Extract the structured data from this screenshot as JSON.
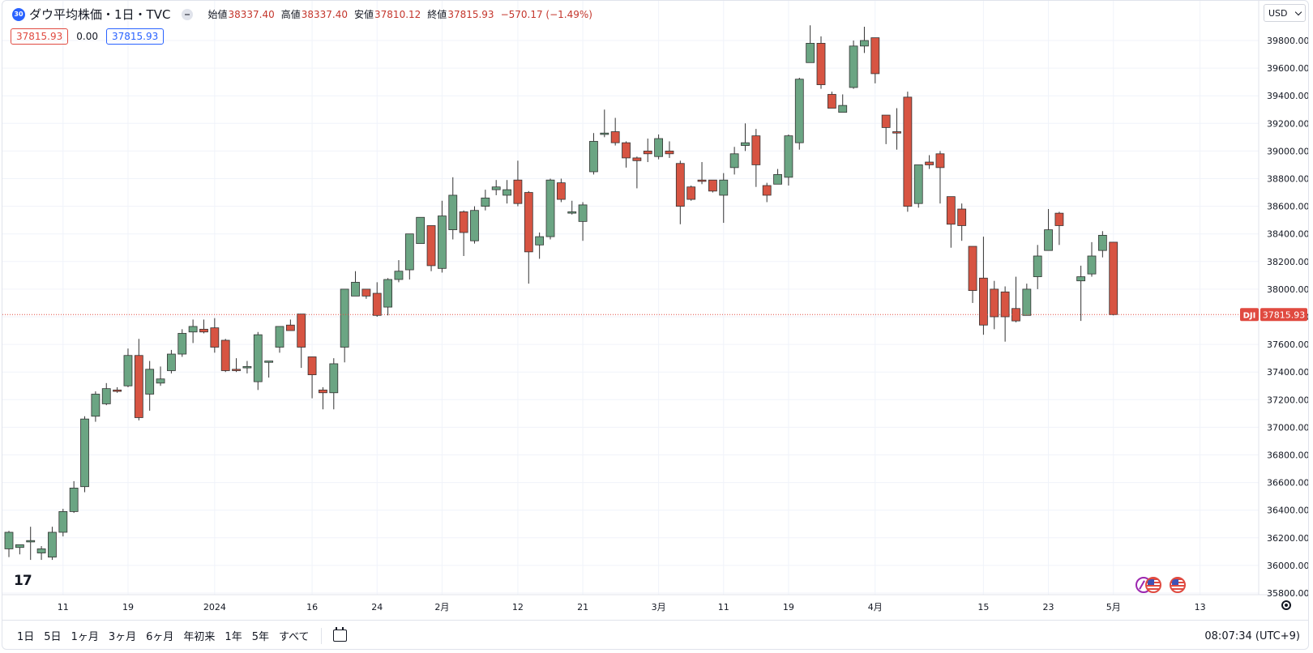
{
  "header": {
    "badge": "30",
    "title": "ダウ平均株価・1日・TVC",
    "ohlc": [
      {
        "label": "始値",
        "value": "38337.40"
      },
      {
        "label": "高値",
        "value": "38337.40"
      },
      {
        "label": "安値",
        "value": "37810.12"
      },
      {
        "label": "終値",
        "value": "37815.93"
      }
    ],
    "change": "−570.17 (−1.49%)"
  },
  "values_row": {
    "sell": "37815.93",
    "spread": "0.00",
    "buy": "37815.93"
  },
  "currency": "USD",
  "toolbar": {
    "ranges": [
      "1日",
      "5日",
      "1ヶ月",
      "3ヶ月",
      "6ヶ月",
      "年初来",
      "1年",
      "5年",
      "すべて"
    ],
    "clock": "08:07:34 (UTC+9)"
  },
  "colors": {
    "up": "#6ba583",
    "down": "#d75442",
    "last_line": "#e04a40",
    "grid": "#f0f3fa"
  },
  "icons": [
    "tradingview-logo-icon",
    "settings-icon",
    "calendar-range-icon",
    "usd-chevron-icon",
    "economic-event-icon",
    "us-flag-icon"
  ],
  "chart_data": {
    "type": "candlestick",
    "symbol": "DJI",
    "last_price": 37815.93,
    "last_label": "37815.93",
    "y_range": [
      35800,
      40000
    ],
    "y_ticks": [
      35800,
      36000,
      36200,
      36400,
      36600,
      36800,
      37000,
      37200,
      37400,
      37600,
      37800,
      38000,
      38200,
      38400,
      38600,
      38800,
      39000,
      39200,
      39400,
      39600,
      39800
    ],
    "y_tick_labels": [
      "35800.00",
      "36000.00",
      "36200.00",
      "36400.00",
      "36600.00",
      "36800.00",
      "37000.00",
      "37200.00",
      "37400.00",
      "37600.00",
      "37800.00",
      "38000.00",
      "38200.00",
      "38400.00",
      "38600.00",
      "38800.00",
      "39000.00",
      "39200.00",
      "39400.00",
      "39600.00",
      "39800.00"
    ],
    "x_range": [
      0,
      111
    ],
    "x_ticks": [
      {
        "i": 5,
        "label": "11"
      },
      {
        "i": 11,
        "label": "19"
      },
      {
        "i": 19,
        "label": "2024"
      },
      {
        "i": 28,
        "label": "16"
      },
      {
        "i": 34,
        "label": "24"
      },
      {
        "i": 40,
        "label": "2月"
      },
      {
        "i": 47,
        "label": "12"
      },
      {
        "i": 53,
        "label": "21"
      },
      {
        "i": 60,
        "label": "3月"
      },
      {
        "i": 66,
        "label": "11"
      },
      {
        "i": 72,
        "label": "19"
      },
      {
        "i": 80,
        "label": "4月"
      },
      {
        "i": 90,
        "label": "15"
      },
      {
        "i": 96,
        "label": "23"
      },
      {
        "i": 102,
        "label": "5月"
      },
      {
        "i": 110,
        "label": "13"
      }
    ],
    "candles": [
      [
        36120,
        36240,
        36060,
        36250
      ],
      [
        36130,
        36150,
        36080,
        36140
      ],
      [
        36170,
        36180,
        36040,
        36280
      ],
      [
        36090,
        36120,
        36040,
        36140
      ],
      [
        36060,
        36240,
        36040,
        36280
      ],
      [
        36240,
        36390,
        36210,
        36410
      ],
      [
        36390,
        36560,
        36380,
        36610
      ],
      [
        36570,
        37060,
        36530,
        37080
      ],
      [
        37080,
        37240,
        37040,
        37260
      ],
      [
        37170,
        37280,
        37160,
        37320
      ],
      [
        37270,
        37260,
        37250,
        37290
      ],
      [
        37300,
        37520,
        37290,
        37570
      ],
      [
        37520,
        37070,
        37050,
        37640
      ],
      [
        37240,
        37420,
        37120,
        37480
      ],
      [
        37320,
        37350,
        37300,
        37440
      ],
      [
        37410,
        37530,
        37390,
        37560
      ],
      [
        37530,
        37680,
        37510,
        37710
      ],
      [
        37690,
        37730,
        37610,
        37780
      ],
      [
        37710,
        37690,
        37680,
        37780
      ],
      [
        37720,
        37580,
        37540,
        37790
      ],
      [
        37630,
        37410,
        37400,
        37640
      ],
      [
        37420,
        37410,
        37400,
        37500
      ],
      [
        37430,
        37440,
        37390,
        37480
      ],
      [
        37330,
        37670,
        37270,
        37690
      ],
      [
        37470,
        37480,
        37360,
        37480
      ],
      [
        37580,
        37730,
        37540,
        37730
      ],
      [
        37740,
        37700,
        37700,
        37780
      ],
      [
        37820,
        37580,
        37430,
        37820
      ],
      [
        37510,
        37380,
        37210,
        37510
      ],
      [
        37270,
        37250,
        37130,
        37290
      ],
      [
        37250,
        37460,
        37130,
        37500
      ],
      [
        37580,
        38000,
        37470,
        38000
      ],
      [
        37950,
        38050,
        37950,
        38130
      ],
      [
        38000,
        37950,
        37930,
        38000
      ],
      [
        37970,
        37810,
        37800,
        38050
      ],
      [
        37870,
        38070,
        37810,
        38080
      ],
      [
        38070,
        38130,
        38050,
        38210
      ],
      [
        38140,
        38400,
        38070,
        38400
      ],
      [
        38330,
        38520,
        38330,
        38520
      ],
      [
        38460,
        38170,
        38130,
        38460
      ],
      [
        38150,
        38530,
        38120,
        38640
      ],
      [
        38430,
        38680,
        38360,
        38810
      ],
      [
        38560,
        38410,
        38240,
        38570
      ],
      [
        38350,
        38570,
        38330,
        38600
      ],
      [
        38600,
        38660,
        38570,
        38720
      ],
      [
        38720,
        38740,
        38680,
        38790
      ],
      [
        38680,
        38720,
        38620,
        38790
      ],
      [
        38790,
        38620,
        38600,
        38930
      ],
      [
        38700,
        38270,
        38040,
        38710
      ],
      [
        38320,
        38380,
        38220,
        38410
      ],
      [
        38380,
        38790,
        38360,
        38800
      ],
      [
        38770,
        38650,
        38630,
        38800
      ],
      [
        38550,
        38560,
        38540,
        38640
      ],
      [
        38490,
        38610,
        38350,
        38630
      ],
      [
        38850,
        39070,
        38830,
        39130
      ],
      [
        39120,
        39130,
        39100,
        39300
      ],
      [
        39140,
        39060,
        39040,
        39240
      ],
      [
        39060,
        38950,
        38880,
        39070
      ],
      [
        38950,
        38930,
        38730,
        38960
      ],
      [
        39000,
        38980,
        38920,
        39090
      ],
      [
        38960,
        39090,
        38940,
        39120
      ],
      [
        39000,
        38980,
        38950,
        39070
      ],
      [
        38910,
        38600,
        38470,
        38930
      ],
      [
        38740,
        38650,
        38640,
        38750
      ],
      [
        38790,
        38780,
        38760,
        38920
      ],
      [
        38790,
        38710,
        38700,
        38780
      ],
      [
        38680,
        38790,
        38480,
        38840
      ],
      [
        38880,
        38980,
        38830,
        39030
      ],
      [
        39040,
        39060,
        39000,
        39200
      ],
      [
        39110,
        38900,
        38740,
        39160
      ],
      [
        38750,
        38680,
        38630,
        38770
      ],
      [
        38760,
        38830,
        38790,
        38870
      ],
      [
        38810,
        39110,
        38750,
        39120
      ],
      [
        39060,
        39520,
        39010,
        39530
      ],
      [
        39640,
        39780,
        39640,
        39910
      ],
      [
        39780,
        39480,
        39450,
        39830
      ],
      [
        39410,
        39310,
        39310,
        39430
      ],
      [
        39280,
        39330,
        39280,
        39410
      ],
      [
        39460,
        39760,
        39450,
        39800
      ],
      [
        39760,
        39800,
        39710,
        39900
      ],
      [
        39820,
        39560,
        39490,
        39820
      ],
      [
        39260,
        39170,
        39050,
        39260
      ],
      [
        39140,
        39130,
        39010,
        39310
      ],
      [
        39390,
        38600,
        38560,
        39430
      ],
      [
        38620,
        38900,
        38590,
        38900
      ],
      [
        38920,
        38900,
        38870,
        38970
      ],
      [
        38980,
        38880,
        38620,
        39000
      ],
      [
        38670,
        38470,
        38300,
        38670
      ],
      [
        38580,
        38460,
        38350,
        38620
      ],
      [
        38310,
        37990,
        37900,
        38310
      ],
      [
        38080,
        37740,
        37670,
        38380
      ],
      [
        38000,
        37800,
        37710,
        38060
      ],
      [
        37980,
        37800,
        37620,
        38020
      ],
      [
        37860,
        37770,
        37760,
        38090
      ],
      [
        37810,
        38000,
        37810,
        38040
      ],
      [
        38090,
        38240,
        38000,
        38320
      ],
      [
        38280,
        38430,
        38400,
        38580
      ],
      [
        38550,
        38460,
        38320,
        38560
      ],
      null,
      [
        38060,
        38090,
        37770,
        38170
      ],
      [
        38110,
        38240,
        38090,
        38340
      ],
      [
        38280,
        38390,
        38230,
        38420
      ],
      [
        38340,
        37815.93,
        37810,
        38340
      ]
    ]
  }
}
